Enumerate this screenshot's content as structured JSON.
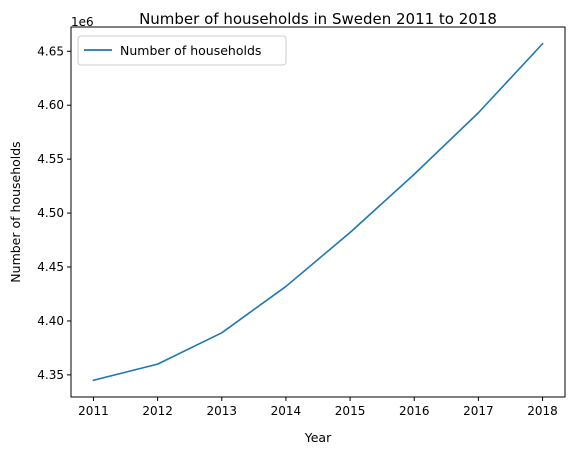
{
  "chart_data": {
    "type": "line",
    "title": "Number of households in Sweden 2011 to 2018",
    "xlabel": "Year",
    "ylabel": "Number of households",
    "y_offset_label": "1e6",
    "x": [
      2011,
      2012,
      2013,
      2014,
      2015,
      2016,
      2017,
      2018
    ],
    "x_tick_labels": [
      "2011",
      "2012",
      "2013",
      "2014",
      "2015",
      "2016",
      "2017",
      "2018"
    ],
    "y_ticks": [
      4.35,
      4.4,
      4.45,
      4.5,
      4.55,
      4.6,
      4.65
    ],
    "y_tick_labels": [
      "4.35",
      "4.40",
      "4.45",
      "4.50",
      "4.55",
      "4.60",
      "4.65"
    ],
    "xlim": [
      2010.65,
      2018.35
    ],
    "ylim": [
      4.3295,
      4.6725
    ],
    "series": [
      {
        "name": "Number of households",
        "color": "#1f77b4",
        "values": [
          4.345,
          4.36,
          4.389,
          4.432,
          4.482,
          4.536,
          4.593,
          4.657
        ]
      }
    ],
    "legend_position": "upper-left",
    "grid": false
  }
}
